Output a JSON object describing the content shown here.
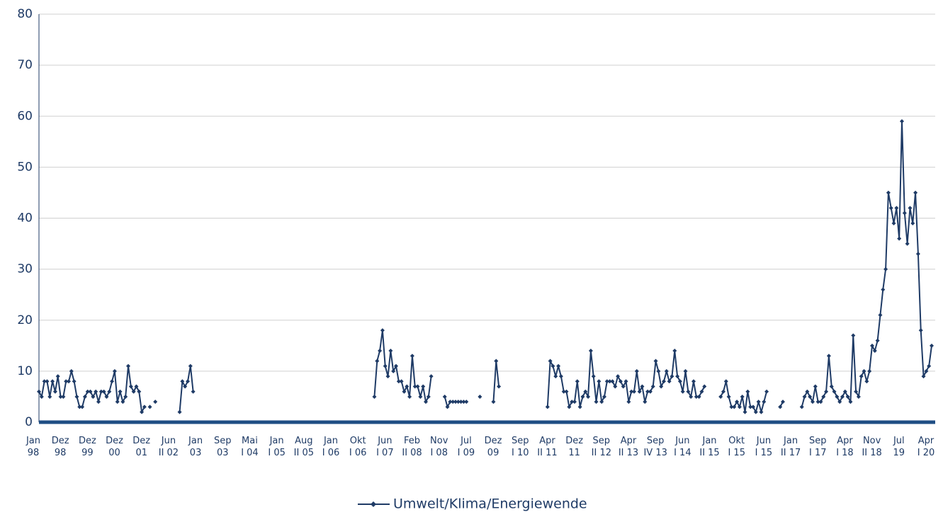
{
  "chart_data": {
    "type": "line",
    "categories": [
      "Jan\n98",
      null,
      null,
      null,
      null,
      null,
      null,
      null,
      null,
      null,
      "Dez\n98",
      null,
      null,
      null,
      null,
      null,
      null,
      null,
      null,
      null,
      "Dez\n99",
      null,
      null,
      null,
      null,
      null,
      null,
      null,
      null,
      null,
      "Dez\n00",
      null,
      null,
      null,
      null,
      null,
      null,
      null,
      null,
      null,
      "Dez\n01",
      null,
      null,
      null,
      null,
      null,
      null,
      null,
      null,
      null,
      "Jun\nII 02",
      null,
      null,
      null,
      null,
      null,
      null,
      null,
      null,
      null,
      "Jan\n03",
      null,
      null,
      null,
      null,
      null,
      null,
      null,
      null,
      null,
      "Sep\n03",
      null,
      null,
      null,
      null,
      null,
      null,
      null,
      null,
      null,
      "Mai\nI 04",
      null,
      null,
      null,
      null,
      null,
      null,
      null,
      null,
      null,
      "Jan\nI 05",
      null,
      null,
      null,
      null,
      null,
      null,
      null,
      null,
      null,
      "Aug\nII 05",
      null,
      null,
      null,
      null,
      null,
      null,
      null,
      null,
      null,
      "Jan\nI 06",
      null,
      null,
      null,
      null,
      null,
      null,
      null,
      null,
      null,
      "Okt\nI 06",
      null,
      null,
      null,
      null,
      null,
      null,
      null,
      null,
      null,
      "Jun\nI 07",
      null,
      null,
      null,
      null,
      null,
      null,
      null,
      null,
      null,
      "Feb\nII 08",
      null,
      null,
      null,
      null,
      null,
      null,
      null,
      null,
      null,
      "Nov\nI 08",
      null,
      null,
      null,
      null,
      null,
      null,
      null,
      null,
      null,
      "Jul\nI 09",
      null,
      null,
      null,
      null,
      null,
      null,
      null,
      null,
      null,
      "Dez\n09",
      null,
      null,
      null,
      null,
      null,
      null,
      null,
      null,
      null,
      "Sep\nI 10",
      null,
      null,
      null,
      null,
      null,
      null,
      null,
      null,
      null,
      "Apr\nII 11",
      null,
      null,
      null,
      null,
      null,
      null,
      null,
      null,
      null,
      "Dez\n11",
      null,
      null,
      null,
      null,
      null,
      null,
      null,
      null,
      null,
      "Sep\nII 12",
      null,
      null,
      null,
      null,
      null,
      null,
      null,
      null,
      null,
      "Apr\nII 13",
      null,
      null,
      null,
      null,
      null,
      null,
      null,
      null,
      null,
      "Sep\nIV 13",
      null,
      null,
      null,
      null,
      null,
      null,
      null,
      null,
      null,
      "Jun\nI 14",
      null,
      null,
      null,
      null,
      null,
      null,
      null,
      null,
      null,
      "Jan\nII 15",
      null,
      null,
      null,
      null,
      null,
      null,
      null,
      null,
      null,
      "Okt\nI 15",
      null,
      null,
      null,
      null,
      null,
      null,
      null,
      null,
      null,
      "Jun\nI 15",
      null,
      null,
      null,
      null,
      null,
      null,
      null,
      null,
      null,
      "Jan\nII 17",
      null,
      null,
      null,
      null,
      null,
      null,
      null,
      null,
      null,
      "Sep\nI 17",
      null,
      null,
      null,
      null,
      null,
      null,
      null,
      null,
      null,
      "Apr\nI 18",
      null,
      null,
      null,
      null,
      null,
      null,
      null,
      null,
      null,
      "Nov\nII 18",
      null,
      null,
      null,
      null,
      null,
      null,
      null,
      null,
      null,
      "Jul\n19",
      null,
      null,
      null,
      null,
      null,
      null,
      null,
      null,
      null,
      "Apr\nI 20"
    ],
    "series": [
      {
        "name": "Umwelt/Klima/Energiewende",
        "color": "#1f3b66",
        "values": [
          6,
          5,
          8,
          8,
          5,
          8,
          6,
          9,
          5,
          5,
          8,
          8,
          10,
          8,
          5,
          3,
          3,
          5,
          6,
          6,
          5,
          6,
          4,
          6,
          6,
          5,
          6,
          8,
          10,
          4,
          6,
          4,
          5,
          11,
          7,
          6,
          7,
          6,
          2,
          3,
          null,
          3,
          null,
          4,
          null,
          null,
          null,
          null,
          null,
          null,
          null,
          null,
          2,
          8,
          7,
          8,
          11,
          6,
          null,
          null,
          null,
          null,
          null,
          null,
          null,
          null,
          null,
          null,
          null,
          null,
          null,
          null,
          null,
          null,
          null,
          null,
          null,
          null,
          null,
          null,
          null,
          null,
          null,
          null,
          null,
          null,
          null,
          null,
          null,
          null,
          null,
          null,
          null,
          null,
          null,
          null,
          null,
          null,
          null,
          null,
          null,
          null,
          null,
          null,
          null,
          null,
          null,
          null,
          null,
          null,
          null,
          null,
          null,
          null,
          null,
          null,
          null,
          null,
          null,
          null,
          null,
          null,
          null,
          null,
          5,
          12,
          14,
          18,
          11,
          9,
          14,
          10,
          11,
          8,
          8,
          6,
          7,
          5,
          13,
          7,
          7,
          5,
          7,
          4,
          5,
          9,
          null,
          null,
          null,
          null,
          5,
          3,
          4,
          4,
          4,
          4,
          4,
          4,
          4,
          null,
          null,
          null,
          null,
          5,
          null,
          null,
          null,
          null,
          4,
          12,
          7,
          null,
          null,
          null,
          null,
          null,
          null,
          null,
          null,
          null,
          null,
          null,
          null,
          null,
          null,
          null,
          null,
          null,
          3,
          12,
          11,
          9,
          11,
          9,
          6,
          6,
          3,
          4,
          4,
          8,
          3,
          5,
          6,
          5,
          14,
          9,
          4,
          8,
          4,
          5,
          8,
          8,
          8,
          7,
          9,
          8,
          7,
          8,
          4,
          6,
          6,
          10,
          6,
          7,
          4,
          6,
          6,
          7,
          12,
          10,
          7,
          8,
          10,
          8,
          9,
          14,
          9,
          8,
          6,
          10,
          6,
          5,
          8,
          5,
          5,
          6,
          7,
          null,
          null,
          null,
          null,
          null,
          5,
          6,
          8,
          5,
          3,
          3,
          4,
          3,
          5,
          2,
          6,
          3,
          3,
          2,
          4,
          2,
          4,
          6,
          null,
          null,
          null,
          null,
          3,
          4,
          null,
          null,
          null,
          null,
          null,
          null,
          3,
          5,
          6,
          5,
          4,
          7,
          4,
          4,
          5,
          6,
          13,
          7,
          6,
          5,
          4,
          5,
          6,
          5,
          4,
          17,
          6,
          5,
          9,
          10,
          8,
          10,
          15,
          14,
          16,
          21,
          26,
          30,
          45,
          42,
          39,
          42,
          36,
          59,
          41,
          35,
          42,
          39,
          45,
          33,
          18,
          9,
          10,
          11,
          15
        ]
      }
    ],
    "ylim": [
      0,
      80
    ],
    "yticks": [
      0,
      10,
      20,
      30,
      40,
      50,
      60,
      70,
      80
    ],
    "grid": true,
    "legend": "bottom"
  }
}
